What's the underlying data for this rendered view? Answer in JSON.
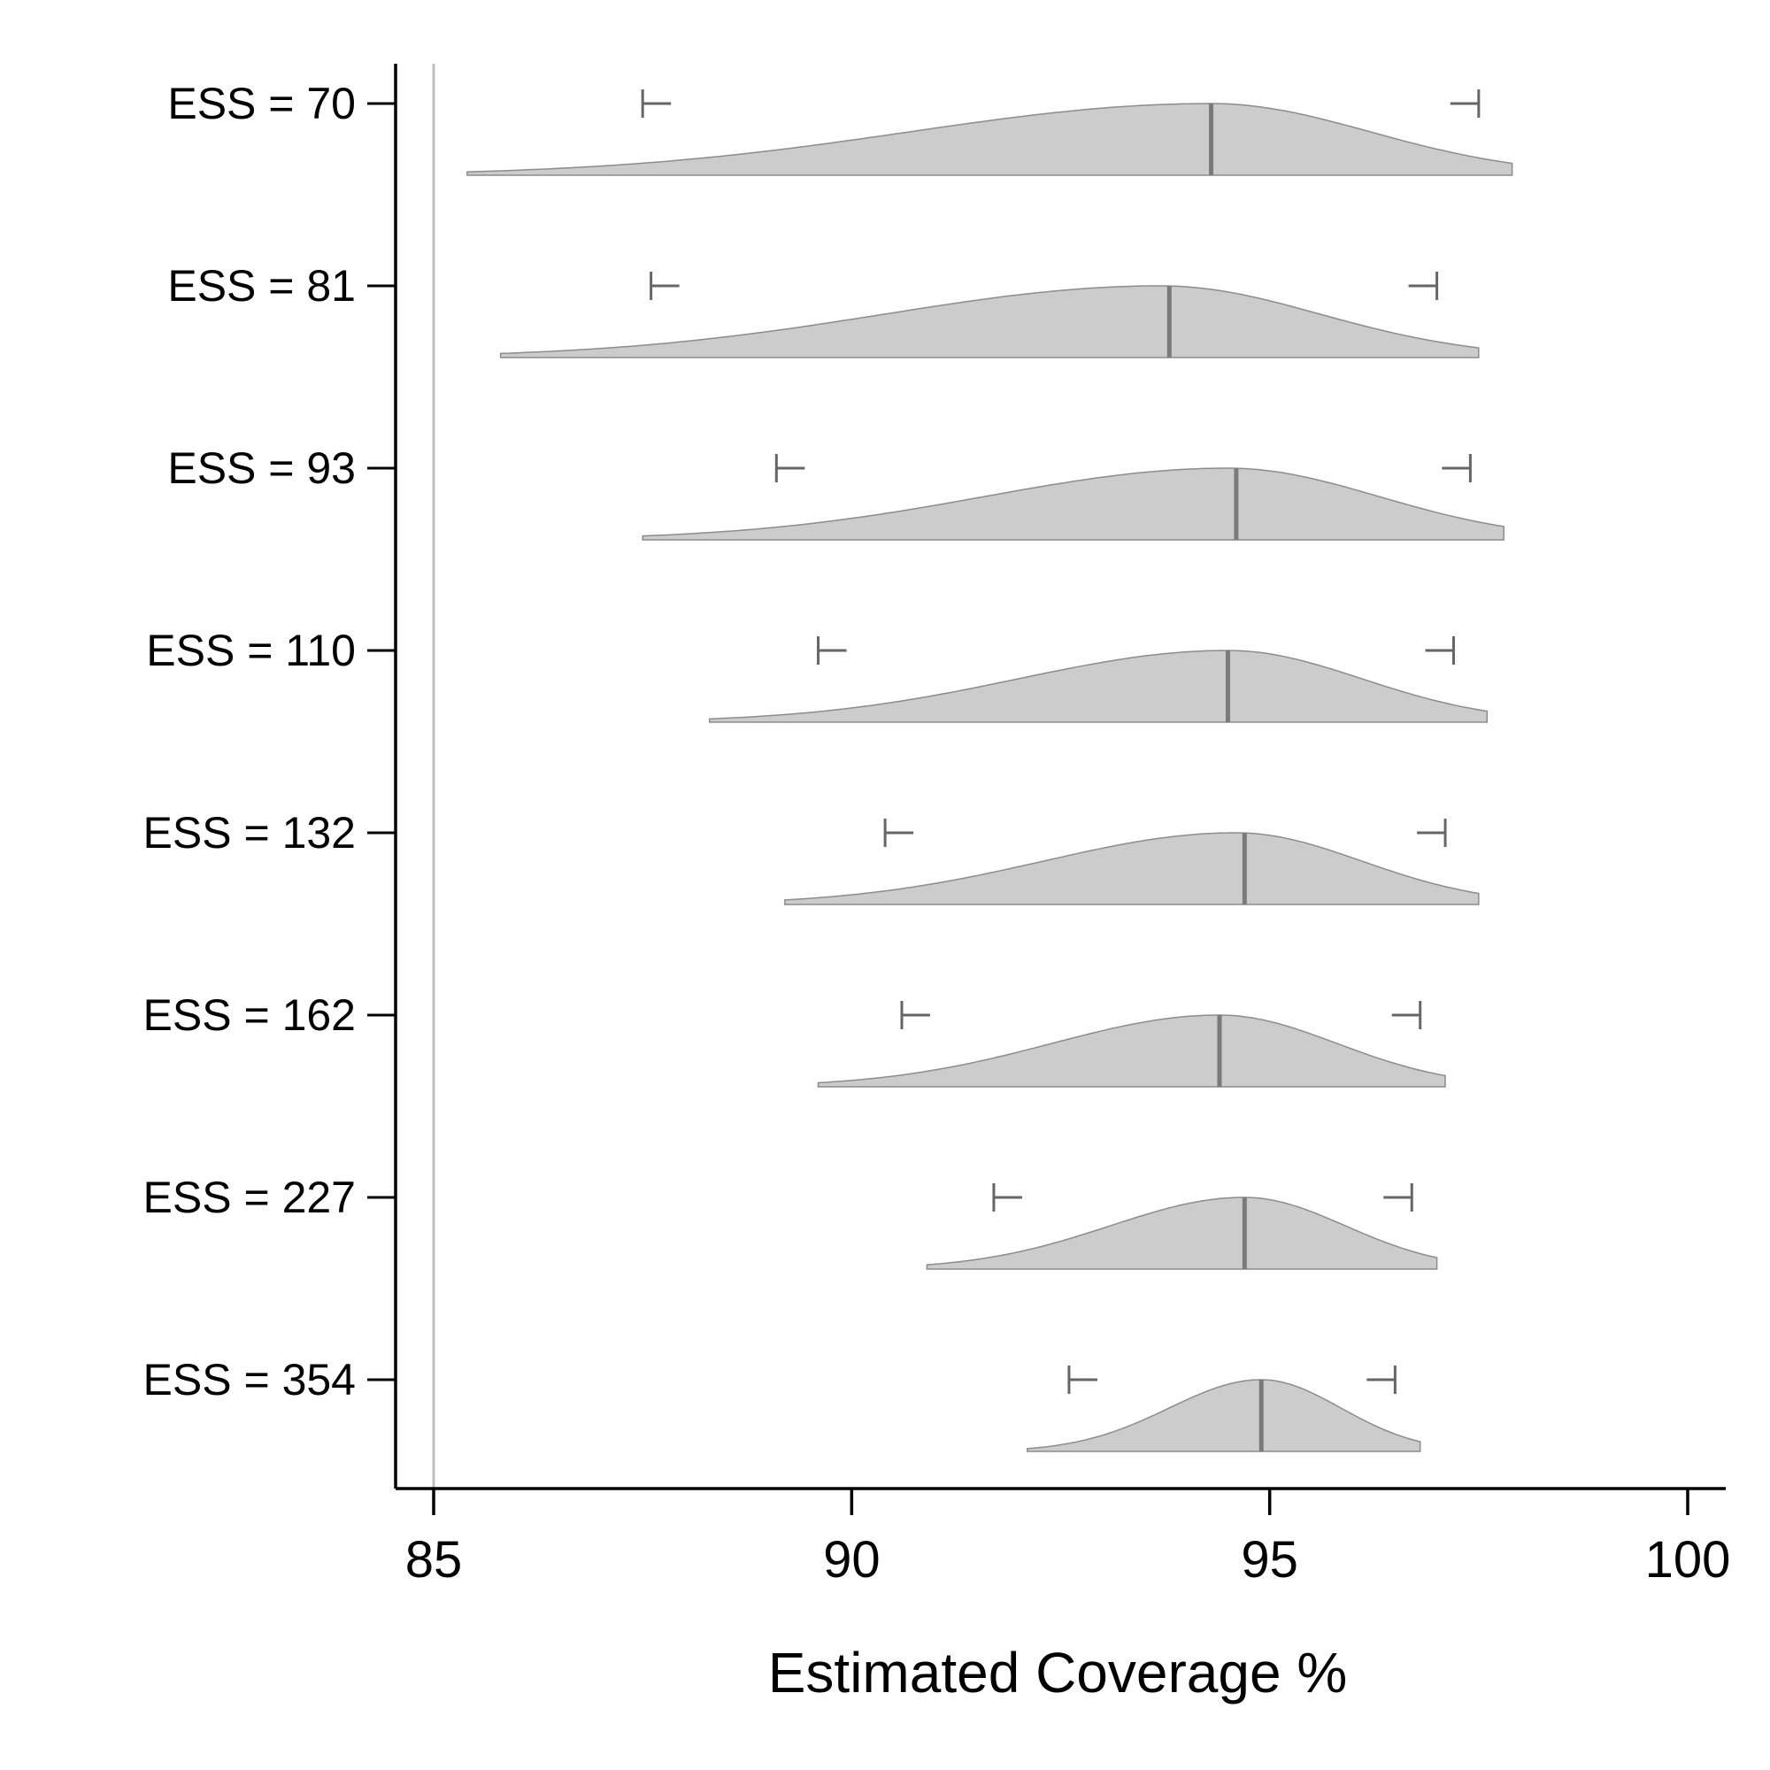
{
  "chart_data": {
    "type": "area",
    "xlabel": "Estimated Coverage %",
    "xlim": [
      85,
      100
    ],
    "xticks": [
      85,
      90,
      95,
      100
    ],
    "reference_line_x": 85,
    "colors": {
      "density_fill": "#cccccc",
      "density_edge": "#8c8c8c",
      "median_line": "#7a7a7a",
      "whisker": "#666666",
      "reference_line": "#bfbfbf",
      "axis": "#000000"
    },
    "series": [
      {
        "name": "ESS = 70",
        "min": 85.4,
        "max": 97.9,
        "median": 94.3,
        "lower": 87.5,
        "upper": 97.5,
        "peak": 94.3,
        "spread_left": 3.6,
        "spread_right": 1.9
      },
      {
        "name": "ESS = 81",
        "min": 85.8,
        "max": 97.5,
        "median": 93.8,
        "lower": 87.6,
        "upper": 97.0,
        "peak": 93.7,
        "spread_left": 3.3,
        "spread_right": 1.9
      },
      {
        "name": "ESS = 93",
        "min": 87.5,
        "max": 97.8,
        "median": 94.6,
        "lower": 89.1,
        "upper": 97.4,
        "peak": 94.5,
        "spread_left": 2.9,
        "spread_right": 1.8
      },
      {
        "name": "ESS = 110",
        "min": 88.3,
        "max": 97.6,
        "median": 94.5,
        "lower": 89.6,
        "upper": 97.2,
        "peak": 94.5,
        "spread_left": 2.5,
        "spread_right": 1.6
      },
      {
        "name": "ESS = 132",
        "min": 89.2,
        "max": 97.5,
        "median": 94.7,
        "lower": 90.4,
        "upper": 97.1,
        "peak": 94.6,
        "spread_left": 2.3,
        "spread_right": 1.5
      },
      {
        "name": "ESS = 162",
        "min": 89.6,
        "max": 97.1,
        "median": 94.4,
        "lower": 90.6,
        "upper": 96.8,
        "peak": 94.4,
        "spread_left": 2.0,
        "spread_right": 1.4
      },
      {
        "name": "ESS = 227",
        "min": 90.9,
        "max": 97.0,
        "median": 94.7,
        "lower": 91.7,
        "upper": 96.7,
        "peak": 94.7,
        "spread_left": 1.6,
        "spread_right": 1.2
      },
      {
        "name": "ESS = 354",
        "min": 92.1,
        "max": 96.8,
        "median": 94.9,
        "lower": 92.6,
        "upper": 96.5,
        "peak": 94.9,
        "spread_left": 1.1,
        "spread_right": 0.95
      }
    ]
  }
}
